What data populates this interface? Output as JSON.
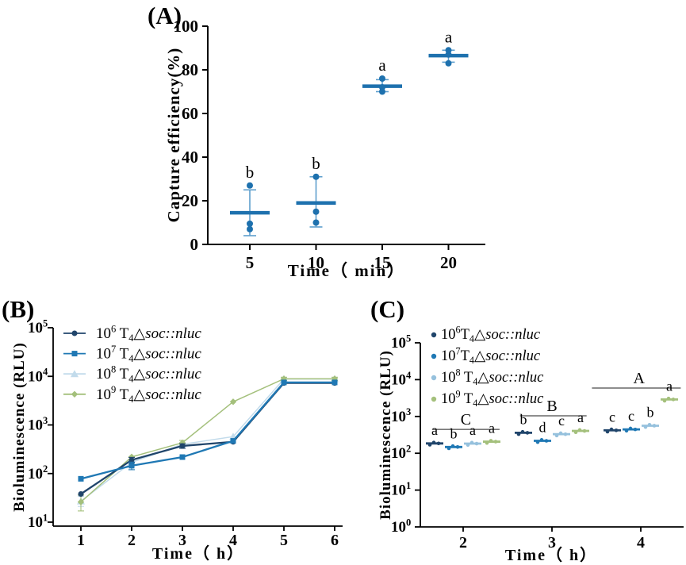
{
  "panel_labels": {
    "a": "(A)",
    "b": "(B)",
    "c": "(C)"
  },
  "colors": {
    "panel_a_point": "#1e71ae",
    "panel_a_error": "#5e9fcd",
    "navy": "#20456b",
    "blue": "#1f78b4",
    "light_blue_b": "#c2dbeb",
    "light_blue_c": "#96c1dd",
    "green": "#a4c07c",
    "axis": "#000000",
    "group_line": "#4a4a4a"
  },
  "chart_data": [
    {
      "id": "a",
      "panel_label": "(A)",
      "type": "scatter",
      "xlabel": "Time（ min）",
      "ylabel": "Capture efficiency(%)",
      "x_ticks": [
        5,
        10,
        15,
        20
      ],
      "y_ticks": [
        0,
        20,
        40,
        60,
        80,
        100
      ],
      "ylim": [
        0,
        100
      ],
      "point_color": "#1e71ae",
      "error_color": "#5e9fcd",
      "groups": [
        {
          "x": 5,
          "mean": 14.5,
          "err": [
            4,
            25
          ],
          "points": [
            27,
            9.5,
            7
          ],
          "sig": "b"
        },
        {
          "x": 10,
          "mean": 19,
          "err": [
            8,
            31
          ],
          "points": [
            31,
            15,
            10
          ],
          "sig": "b"
        },
        {
          "x": 15,
          "mean": 72.5,
          "err": [
            70,
            75.5
          ],
          "points": [
            76,
            72,
            70
          ],
          "sig": "a"
        },
        {
          "x": 20,
          "mean": 86.5,
          "err": [
            83.5,
            89
          ],
          "points": [
            89,
            87,
            83
          ],
          "sig": "a"
        }
      ]
    },
    {
      "id": "b",
      "panel_label": "(B)",
      "type": "line",
      "xlabel": "Time（ h）",
      "ylabel": "Bioluminescence (RLU)",
      "x": [
        1,
        2,
        3,
        4,
        5,
        6
      ],
      "x_ticks": [
        1,
        2,
        3,
        4,
        5,
        6
      ],
      "y_ticks_exp": [
        1,
        2,
        3,
        4,
        5
      ],
      "legend_position": "top-left",
      "series": [
        {
          "name_parts": [
            [
              "n",
              "10"
            ],
            [
              "sup",
              "6"
            ],
            [
              "n",
              " T"
            ],
            [
              "sub",
              "4"
            ],
            [
              "n",
              "△"
            ],
            [
              "i",
              "soc::nluc"
            ]
          ],
          "color": "#20456b",
          "marker": "circle",
          "values": [
            38,
            190,
            370,
            450,
            7300,
            7300
          ],
          "err": [
            null,
            [
              168,
              215
            ],
            [
              330,
              410
            ],
            null,
            null,
            null
          ]
        },
        {
          "name_parts": [
            [
              "n",
              "10"
            ],
            [
              "sup",
              "7"
            ],
            [
              "n",
              " T"
            ],
            [
              "sub",
              "4"
            ],
            [
              "n",
              "△"
            ],
            [
              "i",
              "soc::nluc"
            ]
          ],
          "color": "#1f78b4",
          "marker": "square",
          "values": [
            78,
            145,
            218,
            470,
            7500,
            7500
          ],
          "err": [
            null,
            [
              120,
              172
            ],
            null,
            null,
            null,
            null
          ]
        },
        {
          "name_parts": [
            [
              "n",
              "10"
            ],
            [
              "sup",
              "8"
            ],
            [
              "n",
              " T"
            ],
            [
              "sub",
              "4"
            ],
            [
              "n",
              "△"
            ],
            [
              "i",
              "soc::nluc"
            ]
          ],
          "color": "#c2dbeb",
          "marker": "triangle",
          "values": [
            27,
            170,
            400,
            575,
            8800,
            8800
          ],
          "err": [
            [
              21,
              34
            ],
            null,
            null,
            null,
            [
              8100,
              9500
            ],
            [
              8100,
              9500
            ]
          ]
        },
        {
          "name_parts": [
            [
              "n",
              "10"
            ],
            [
              "sup",
              "9"
            ],
            [
              "n",
              " T"
            ],
            [
              "sub",
              "4"
            ],
            [
              "n",
              "△"
            ],
            [
              "i",
              "soc::nluc"
            ]
          ],
          "color": "#a4c07c",
          "marker": "diamond",
          "values": [
            26,
            220,
            430,
            3000,
            8900,
            8900
          ],
          "err": [
            [
              17,
              36
            ],
            null,
            [
              385,
              480
            ],
            null,
            [
              8200,
              9600
            ],
            [
              8200,
              9600
            ]
          ]
        }
      ]
    },
    {
      "id": "c",
      "panel_label": "(C)",
      "type": "scatter",
      "xlabel": "Time（ h）",
      "ylabel": "Bioluminescence (RLU)",
      "x_ticks": [
        2,
        3,
        4
      ],
      "y_ticks_exp": [
        0,
        1,
        2,
        3,
        4,
        5
      ],
      "legend_position": "top-left",
      "series": [
        {
          "name_parts": [
            [
              "n",
              "10"
            ],
            [
              "sup",
              "6"
            ],
            [
              "n",
              "T"
            ],
            [
              "sub",
              "4"
            ],
            [
              "n",
              "△"
            ],
            [
              "i",
              "soc::nluc"
            ]
          ],
          "color": "#20456b",
          "means": [
            185,
            360,
            420
          ],
          "sigs": [
            "a",
            "b",
            "c"
          ]
        },
        {
          "name_parts": [
            [
              "n",
              "10"
            ],
            [
              "sup",
              "7"
            ],
            [
              "n",
              "T"
            ],
            [
              "sub",
              "4"
            ],
            [
              "n",
              "△"
            ],
            [
              "i",
              "soc::nluc"
            ]
          ],
          "color": "#1f78b4",
          "means": [
            148,
            218,
            445
          ],
          "sigs": [
            "b",
            "d",
            "c"
          ]
        },
        {
          "name_parts": [
            [
              "n",
              "10"
            ],
            [
              "sup",
              "8"
            ],
            [
              "n",
              " T"
            ],
            [
              "sub",
              "4"
            ],
            [
              "n",
              "△"
            ],
            [
              "i",
              "soc::nluc"
            ]
          ],
          "color": "#96c1dd",
          "means": [
            183,
            330,
            560
          ],
          "sigs": [
            "a",
            "c",
            "b"
          ]
        },
        {
          "name_parts": [
            [
              "n",
              "10"
            ],
            [
              "sup",
              "9"
            ],
            [
              "n",
              " T"
            ],
            [
              "sub",
              "4"
            ],
            [
              "n",
              "△"
            ],
            [
              "i",
              "soc::nluc"
            ]
          ],
          "color": "#a4c07c",
          "means": [
            207,
            405,
            2900
          ],
          "sigs": [
            "a",
            "a",
            "a"
          ]
        }
      ],
      "group_lines": [
        {
          "label": "C",
          "t1": 1.65,
          "t2": 2.41,
          "value": 445,
          "label_t": 2.03
        },
        {
          "label": "B",
          "t1": 2.64,
          "t2": 3.39,
          "value": 1040,
          "label_t": 3.0
        },
        {
          "label": "A",
          "t1": 3.45,
          "t2": 4.45,
          "value": 5900,
          "label_t": 3.98
        }
      ]
    }
  ]
}
